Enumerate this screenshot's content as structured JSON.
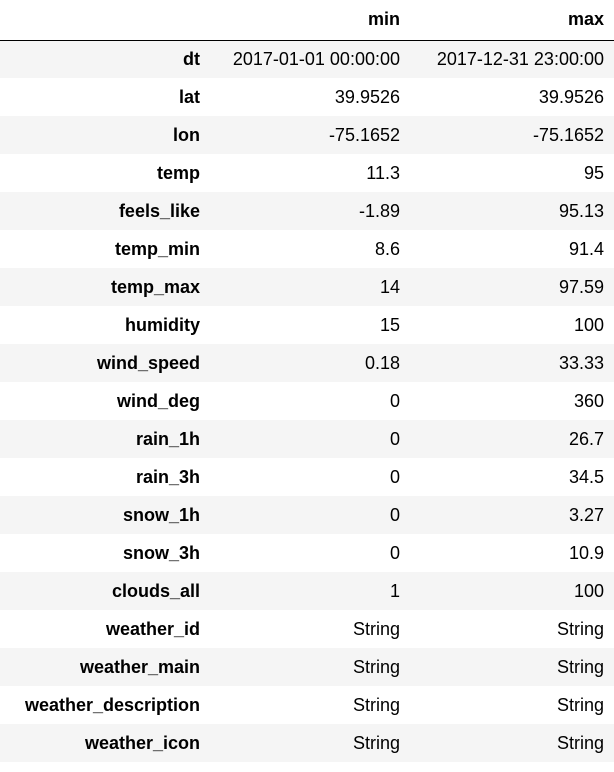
{
  "table": {
    "header": {
      "index": "",
      "columns": [
        "min",
        "max"
      ]
    },
    "rows": [
      {
        "label": "dt",
        "min": "2017-01-01 00:00:00",
        "max": "2017-12-31 23:00:00"
      },
      {
        "label": "lat",
        "min": "39.9526",
        "max": "39.9526"
      },
      {
        "label": "lon",
        "min": "-75.1652",
        "max": "-75.1652"
      },
      {
        "label": "temp",
        "min": "11.3",
        "max": "95"
      },
      {
        "label": "feels_like",
        "min": "-1.89",
        "max": "95.13"
      },
      {
        "label": "temp_min",
        "min": "8.6",
        "max": "91.4"
      },
      {
        "label": "temp_max",
        "min": "14",
        "max": "97.59"
      },
      {
        "label": "humidity",
        "min": "15",
        "max": "100"
      },
      {
        "label": "wind_speed",
        "min": "0.18",
        "max": "33.33"
      },
      {
        "label": "wind_deg",
        "min": "0",
        "max": "360"
      },
      {
        "label": "rain_1h",
        "min": "0",
        "max": "26.7"
      },
      {
        "label": "rain_3h",
        "min": "0",
        "max": "34.5"
      },
      {
        "label": "snow_1h",
        "min": "0",
        "max": "3.27"
      },
      {
        "label": "snow_3h",
        "min": "0",
        "max": "10.9"
      },
      {
        "label": "clouds_all",
        "min": "1",
        "max": "100"
      },
      {
        "label": "weather_id",
        "min": "String",
        "max": "String"
      },
      {
        "label": "weather_main",
        "min": "String",
        "max": "String"
      },
      {
        "label": "weather_description",
        "min": "String",
        "max": "String"
      },
      {
        "label": "weather_icon",
        "min": "String",
        "max": "String"
      }
    ]
  }
}
